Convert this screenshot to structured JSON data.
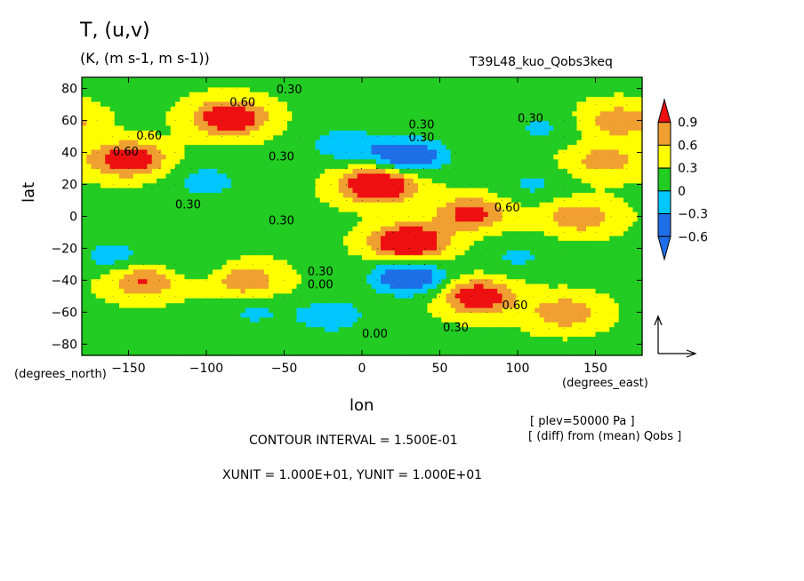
{
  "chart_data": {
    "type": "heatmap",
    "title": "T, (u,v)",
    "units_line": "(K, (m s-1, m s-1))",
    "experiment": "T39L48_kuo_Qobs3keq",
    "xlabel": "lon",
    "xunit": "(degrees_east)",
    "ylabel": "lat",
    "yunit": "(degrees_north)",
    "xlim": [
      -180,
      180
    ],
    "ylim": [
      -87,
      87
    ],
    "x_ticks": [
      -150,
      -100,
      -50,
      0,
      50,
      100,
      150
    ],
    "x_tick_labels": [
      "−150",
      "−100",
      "−50",
      "0",
      "50",
      "100",
      "150"
    ],
    "y_ticks": [
      -80,
      -60,
      -40,
      -20,
      0,
      20,
      40,
      60,
      80
    ],
    "y_tick_labels": [
      "−80",
      "−60",
      "−40",
      "−20",
      "0",
      "20",
      "40",
      "60",
      "80"
    ],
    "colorbar": {
      "levels": [
        -0.6,
        -0.3,
        0,
        0.3,
        0.6,
        0.9
      ],
      "labels": [
        "−0.6",
        "−0.3",
        "0",
        "0.3",
        "0.6",
        "0.9"
      ],
      "colors": [
        "#1e6ee8",
        "#00c8ff",
        "#22cc22",
        "#ffff00",
        "#f0a030",
        "#ee1010"
      ]
    },
    "anomaly_centers": [
      {
        "lon": -85,
        "lat": 62,
        "value": 1.1
      },
      {
        "lon": -150,
        "lat": 36,
        "value": 1.0
      },
      {
        "lon": 10,
        "lat": 20,
        "value": 1.3
      },
      {
        "lon": 30,
        "lat": -16,
        "value": 1.3
      },
      {
        "lon": 70,
        "lat": 2,
        "value": 0.8
      },
      {
        "lon": 75,
        "lat": -50,
        "value": 1.0
      },
      {
        "lon": 30,
        "lat": 38,
        "value": -1.0
      },
      {
        "lon": 30,
        "lat": -38,
        "value": -1.0
      },
      {
        "lon": -10,
        "lat": 45,
        "value": -0.5
      },
      {
        "lon": -100,
        "lat": 22,
        "value": -0.4
      },
      {
        "lon": -20,
        "lat": -62,
        "value": -0.5
      },
      {
        "lon": -70,
        "lat": -60,
        "value": -0.3
      },
      {
        "lon": -160,
        "lat": -25,
        "value": -0.4
      },
      {
        "lon": -110,
        "lat": -30,
        "value": -0.3
      },
      {
        "lon": 110,
        "lat": 20,
        "value": -0.3
      },
      {
        "lon": 100,
        "lat": -25,
        "value": -0.3
      },
      {
        "lon": 115,
        "lat": 55,
        "value": -0.3
      },
      {
        "lon": -140,
        "lat": -40,
        "value": 0.7
      },
      {
        "lon": -75,
        "lat": -40,
        "value": 0.6
      },
      {
        "lon": 155,
        "lat": 35,
        "value": 0.5
      },
      {
        "lon": 140,
        "lat": 0,
        "value": 0.6
      },
      {
        "lon": 165,
        "lat": 60,
        "value": 0.6
      },
      {
        "lon": 130,
        "lat": -60,
        "value": 0.6
      }
    ],
    "contour_labels": [
      {
        "text": "0.30",
        "lon": -55,
        "lat": 77
      },
      {
        "text": "0.60",
        "lon": -85,
        "lat": 69
      },
      {
        "text": "0.60",
        "lon": -145,
        "lat": 48
      },
      {
        "text": "0.60",
        "lon": -160,
        "lat": 38
      },
      {
        "text": "0.30",
        "lon": -60,
        "lat": 35
      },
      {
        "text": "0.30",
        "lon": -120,
        "lat": 5
      },
      {
        "text": "0.30",
        "lon": -60,
        "lat": -5
      },
      {
        "text": "0.30",
        "lon": 30,
        "lat": 55
      },
      {
        "text": "0.30",
        "lon": 30,
        "lat": 47
      },
      {
        "text": "0.30",
        "lon": 100,
        "lat": 59
      },
      {
        "text": "0.60",
        "lon": 85,
        "lat": 3
      },
      {
        "text": "0.30",
        "lon": -35,
        "lat": -37
      },
      {
        "text": "0.00",
        "lon": -35,
        "lat": -45
      },
      {
        "text": "0.60",
        "lon": 90,
        "lat": -58
      },
      {
        "text": "0.30",
        "lon": 52,
        "lat": -72
      },
      {
        "text": "0.00",
        "lon": 0,
        "lat": -76
      }
    ],
    "reference_vector": {
      "u": 10,
      "v": 10
    }
  },
  "texts": {
    "title": "T, (u,v)",
    "units": "(K, (m s-1, m s-1))",
    "experiment": "T39L48_kuo_Qobs3keq",
    "ylabel": "lat",
    "ylabel_unit": "(degrees_north)",
    "xlabel": "lon",
    "xlabel_unit": "(degrees_east)",
    "plev": "[ plev=50000 Pa ]",
    "diff": "[ (diff) from (mean) Qobs ]",
    "contour_interval": "CONTOUR INTERVAL = 1.500E-01",
    "vector_units": "XUNIT = 1.000E+01, YUNIT = 1.000E+01"
  }
}
